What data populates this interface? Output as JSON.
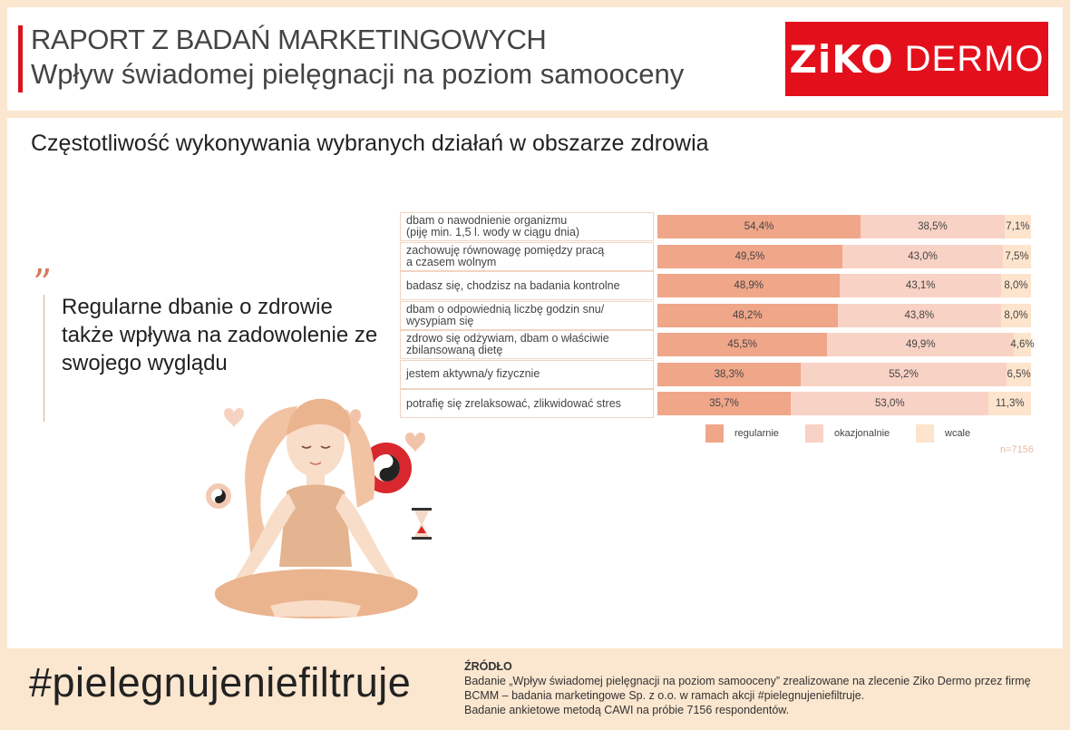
{
  "header": {
    "title_line1": "RAPORT Z BADAŃ MARKETINGOWYCH",
    "title_line2": "Wpływ świadomej pielęgnacji na poziom samooceny",
    "logo_brand": "ZiKO",
    "logo_sub": "DERMO",
    "accent_color": "#e3101c"
  },
  "main": {
    "section_title": "Częstotliwość wykonywania wybranych działań w obszarze zdrowia",
    "quote_mark": "”",
    "quote_text": "Regularne dbanie o zdrowie także wpływa na zadowolenie ze swojego wyglądu"
  },
  "chart_data": {
    "type": "bar",
    "orientation": "horizontal",
    "stacked": true,
    "title": "Częstotliwość wykonywania wybranych działań w obszarze zdrowia",
    "categories": [
      "dbam o nawodnienie organizmu\n(piję min. 1,5 l. wody w ciągu dnia)",
      "zachowuję równowagę pomiędzy pracą\na czasem wolnym",
      "badasz się, chodzisz na badania kontrolne",
      "dbam o odpowiednią liczbę godzin snu/\nwysypiam się",
      "zdrowo się odżywiam, dbam o właściwie\nzbilansowaną dietę",
      "jestem aktywna/y fizycznie",
      "potrafię się zrelaksować, zlikwidować stres"
    ],
    "series": [
      {
        "name": "regularnie",
        "color": "#f0a689",
        "values": [
          54.4,
          49.5,
          48.9,
          48.2,
          45.5,
          38.3,
          35.7
        ],
        "labels": [
          "54,4%",
          "49,5%",
          "48,9%",
          "48,2%",
          "45,5%",
          "38,3%",
          "35,7%"
        ]
      },
      {
        "name": "okazjonalnie",
        "color": "#f8d2c5",
        "values": [
          38.5,
          43.0,
          43.1,
          43.8,
          49.9,
          55.2,
          53.0
        ],
        "labels": [
          "38,5%",
          "43,0%",
          "43,1%",
          "43,8%",
          "49,9%",
          "55,2%",
          "53,0%"
        ]
      },
      {
        "name": "wcale",
        "color": "#fde4cc",
        "values": [
          7.1,
          7.5,
          8.0,
          8.0,
          4.6,
          6.5,
          11.3
        ],
        "labels": [
          "7,1%",
          "7,5%",
          "8,0%",
          "8,0%",
          "4,6%",
          "6,5%",
          "11,3%"
        ]
      }
    ],
    "xlim": [
      0,
      100
    ],
    "legend_position": "bottom",
    "note": "n=7156"
  },
  "footer": {
    "hashtag": "#pielegnujeniefiltruje",
    "source_heading": "ŹRÓDŁO",
    "source_line1": "Badanie „Wpływ świadomej pielęgnacji na poziom samooceny” zrealizowane na zlecenie Ziko Dermo przez firmę BCMM – badania marketingowe Sp. z o.o. w ramach akcji #pielegnujeniefiltruje.",
    "source_line2": "Badanie ankietowe metodą CAWI na próbie 7156 respondentów."
  }
}
